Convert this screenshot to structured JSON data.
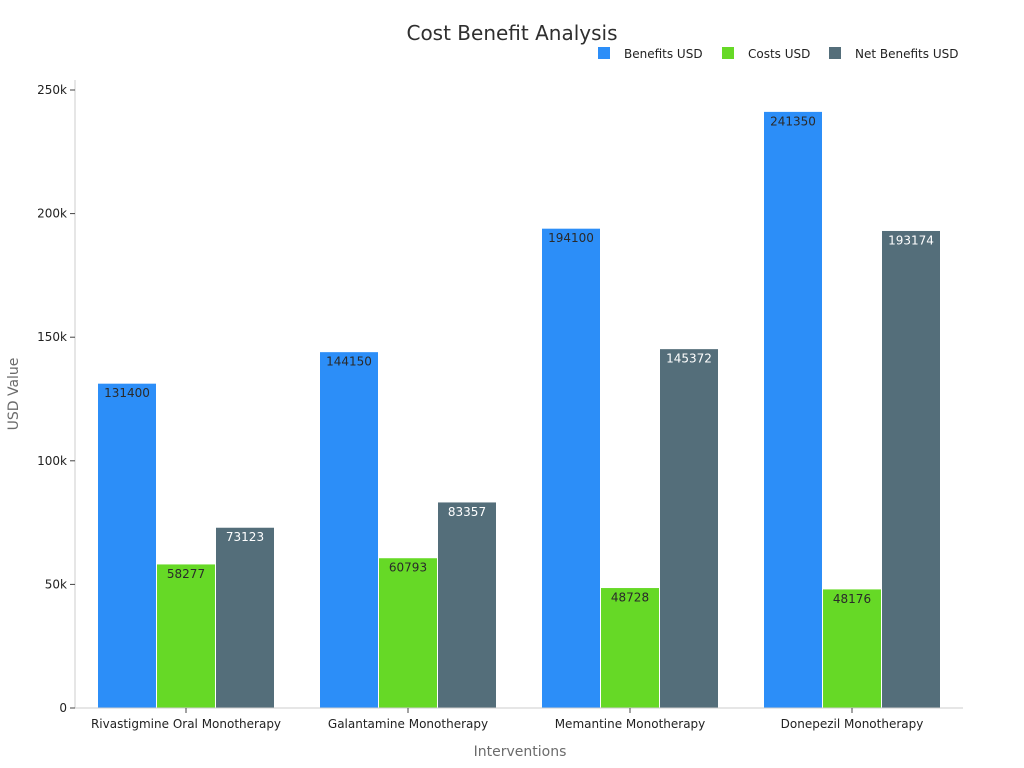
{
  "chart_data": {
    "type": "bar",
    "title": "Cost Benefit Analysis",
    "xlabel": "Interventions",
    "ylabel": "USD Value",
    "categories": [
      "Rivastigmine Oral Monotherapy",
      "Galantamine Monotherapy",
      "Memantine Monotherapy",
      "Donepezil Monotherapy"
    ],
    "series": [
      {
        "name": "Benefits USD",
        "color": "#2c8ef8",
        "label_color": "#2a2a2a",
        "values": [
          131400,
          144150,
          194100,
          241350
        ]
      },
      {
        "name": "Costs USD",
        "color": "#66d926",
        "label_color": "#2a2a2a",
        "values": [
          58277,
          60793,
          48728,
          48176
        ]
      },
      {
        "name": "Net Benefits USD",
        "color": "#546e7a",
        "label_color": "#ffffff",
        "values": [
          73123,
          83357,
          145372,
          193174
        ]
      }
    ],
    "ylim": [
      0,
      250000
    ],
    "yticks": [
      0,
      50000,
      100000,
      150000,
      200000,
      250000
    ],
    "ytick_labels": [
      "0",
      "50k",
      "100k",
      "150k",
      "200k",
      "250k"
    ],
    "legend_position": "top-right",
    "grid": false
  }
}
